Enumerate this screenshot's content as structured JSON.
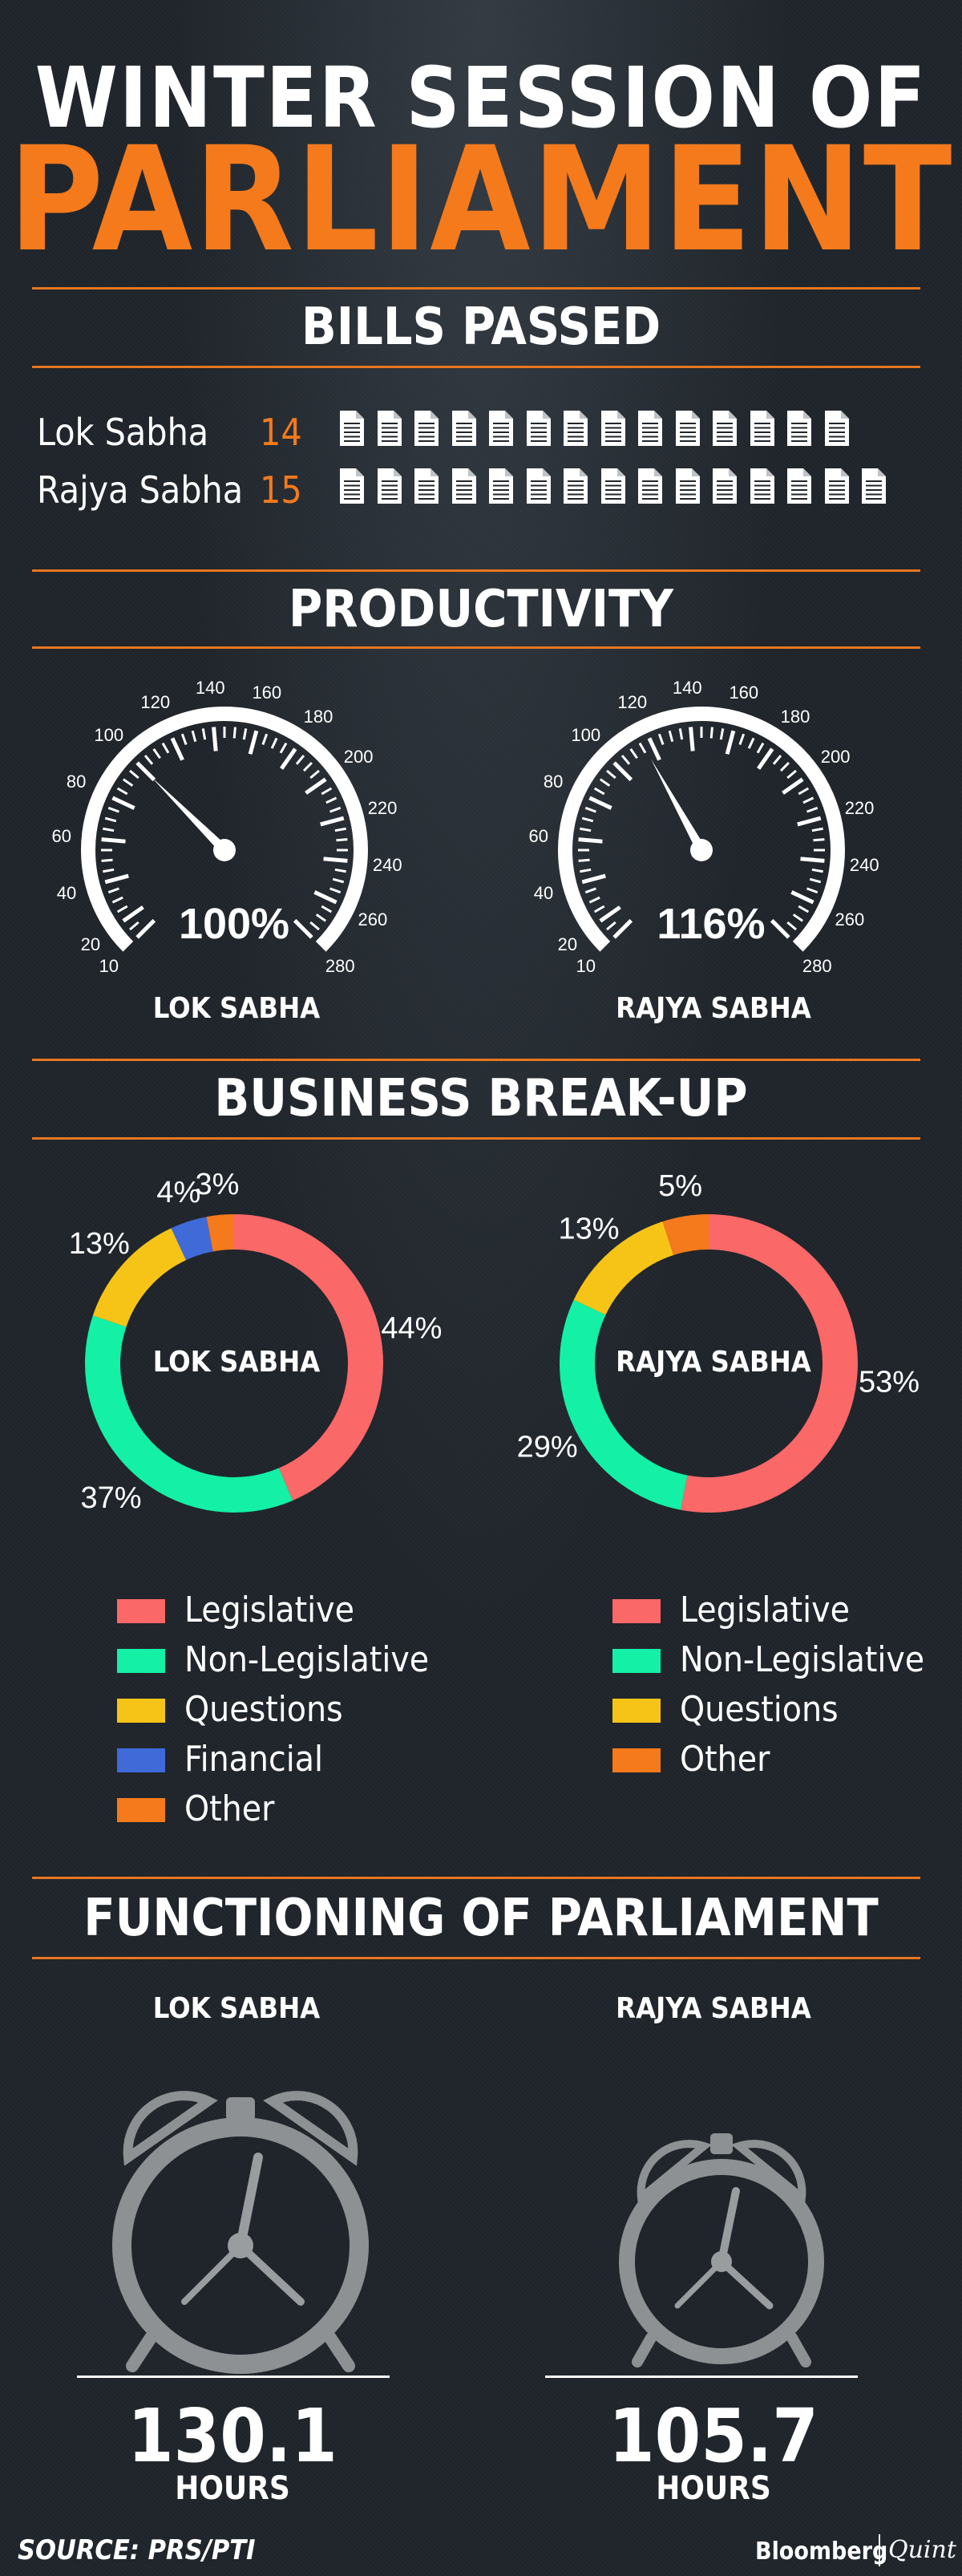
{
  "title": {
    "line1": "WINTER SESSION OF",
    "line2": "PARLIAMENT"
  },
  "colors": {
    "accent": "#f47a1c",
    "legislative": "#fb6868",
    "non_legislative": "#14f0a5",
    "questions": "#f6c417",
    "financial": "#3f6ad8",
    "other": "#f47a1c"
  },
  "bills": {
    "heading": "BILLS PASSED",
    "rows": [
      {
        "label": "Lok Sabha",
        "count": "14",
        "icons": 14
      },
      {
        "label": "Rajya Sabha",
        "count": "15",
        "icons": 15
      }
    ]
  },
  "productivity": {
    "heading": "PRODUCTIVITY",
    "gauges": [
      {
        "label": "LOK SABHA",
        "value": "100%",
        "needle": 100
      },
      {
        "label": "RAJYA SABHA",
        "value": "116%",
        "needle": 116
      }
    ],
    "ticks": [
      "10",
      "20",
      "40",
      "60",
      "80",
      "100",
      "120",
      "140",
      "160",
      "180",
      "200",
      "220",
      "240",
      "260",
      "280"
    ]
  },
  "business": {
    "heading": "BUSINESS BREAK-UP",
    "lok_center": "LOK SABHA",
    "rajya_center": "RAJYA SABHA"
  },
  "chart_data": [
    {
      "type": "pie",
      "title": "LOK SABHA",
      "categories": [
        "Legislative",
        "Non-Legislative",
        "Questions",
        "Financial",
        "Other"
      ],
      "values": [
        44,
        37,
        13,
        4,
        3
      ],
      "labels": [
        "44%",
        "37%",
        "13%",
        "4%",
        "3%"
      ]
    },
    {
      "type": "pie",
      "title": "RAJYA SABHA",
      "categories": [
        "Legislative",
        "Non-Legislative",
        "Questions",
        "Other"
      ],
      "values": [
        53,
        29,
        13,
        5
      ],
      "labels": [
        "53%",
        "29%",
        "13%",
        "5%"
      ]
    }
  ],
  "legend_lok": [
    "Legislative",
    "Non-Legislative",
    "Questions",
    "Financial",
    "Other"
  ],
  "legend_rajya": [
    "Legislative",
    "Non-Legislative",
    "Questions",
    "Other"
  ],
  "functioning": {
    "heading": "FUNCTIONING OF PARLIAMENT",
    "lok_label": "LOK SABHA",
    "rajya_label": "RAJYA SABHA",
    "lok_value": "130.1",
    "rajya_value": "105.7",
    "unit": "HOURS"
  },
  "footer": {
    "source": "SOURCE: PRS/PTI",
    "brand1": "Bloomberg",
    "brand2": "Quint"
  }
}
